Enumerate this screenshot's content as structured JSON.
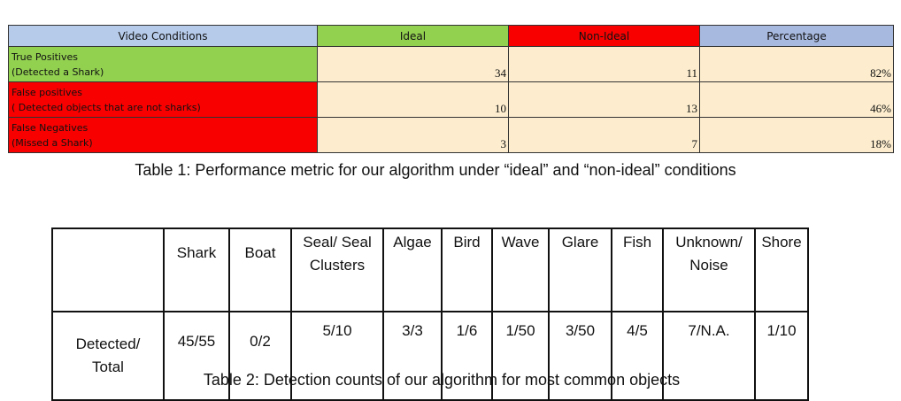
{
  "table1": {
    "headers": [
      "Video Conditions",
      "Ideal",
      "Non-Ideal",
      "Percentage"
    ],
    "rows": [
      {
        "label_line1": "True Positives",
        "label_line2": "(Detected a Shark)",
        "ideal": "34",
        "non_ideal": "11",
        "percentage": "82%",
        "row_color": "#92d050"
      },
      {
        "label_line1": "False positives",
        "label_line2": "( Detected objects that are not sharks)",
        "ideal": "10",
        "non_ideal": "13",
        "percentage": "46%",
        "row_color": "#f80000"
      },
      {
        "label_line1": "False Negatives",
        "label_line2": "(Missed a Shark)",
        "ideal": "3",
        "non_ideal": "7",
        "percentage": "18%",
        "row_color": "#f80000"
      }
    ],
    "header_colors": [
      "#b6cbea",
      "#92d050",
      "#f80000",
      "#a8b9df"
    ],
    "cell_color": "#fdedce",
    "caption": "Table 1: Performance metric for our algorithm under “ideal” and “non-ideal” conditions"
  },
  "table2": {
    "headers": [
      "Shark",
      "Boat",
      "Seal/ Seal",
      "Clusters",
      "Algae",
      "Bird",
      "Wave",
      "Glare",
      "Fish",
      "Unknown/",
      "Noise",
      "Shore"
    ],
    "row_label_line1": "Detected/",
    "row_label_line2": "Total",
    "values": [
      "45/55",
      "0/2",
      "5/10",
      "3/3",
      "1/6",
      "1/50",
      "3/50",
      "4/5",
      "7/N.A.",
      "1/10"
    ],
    "caption": "Table 2: Detection counts of our algorithm for most common objects"
  }
}
